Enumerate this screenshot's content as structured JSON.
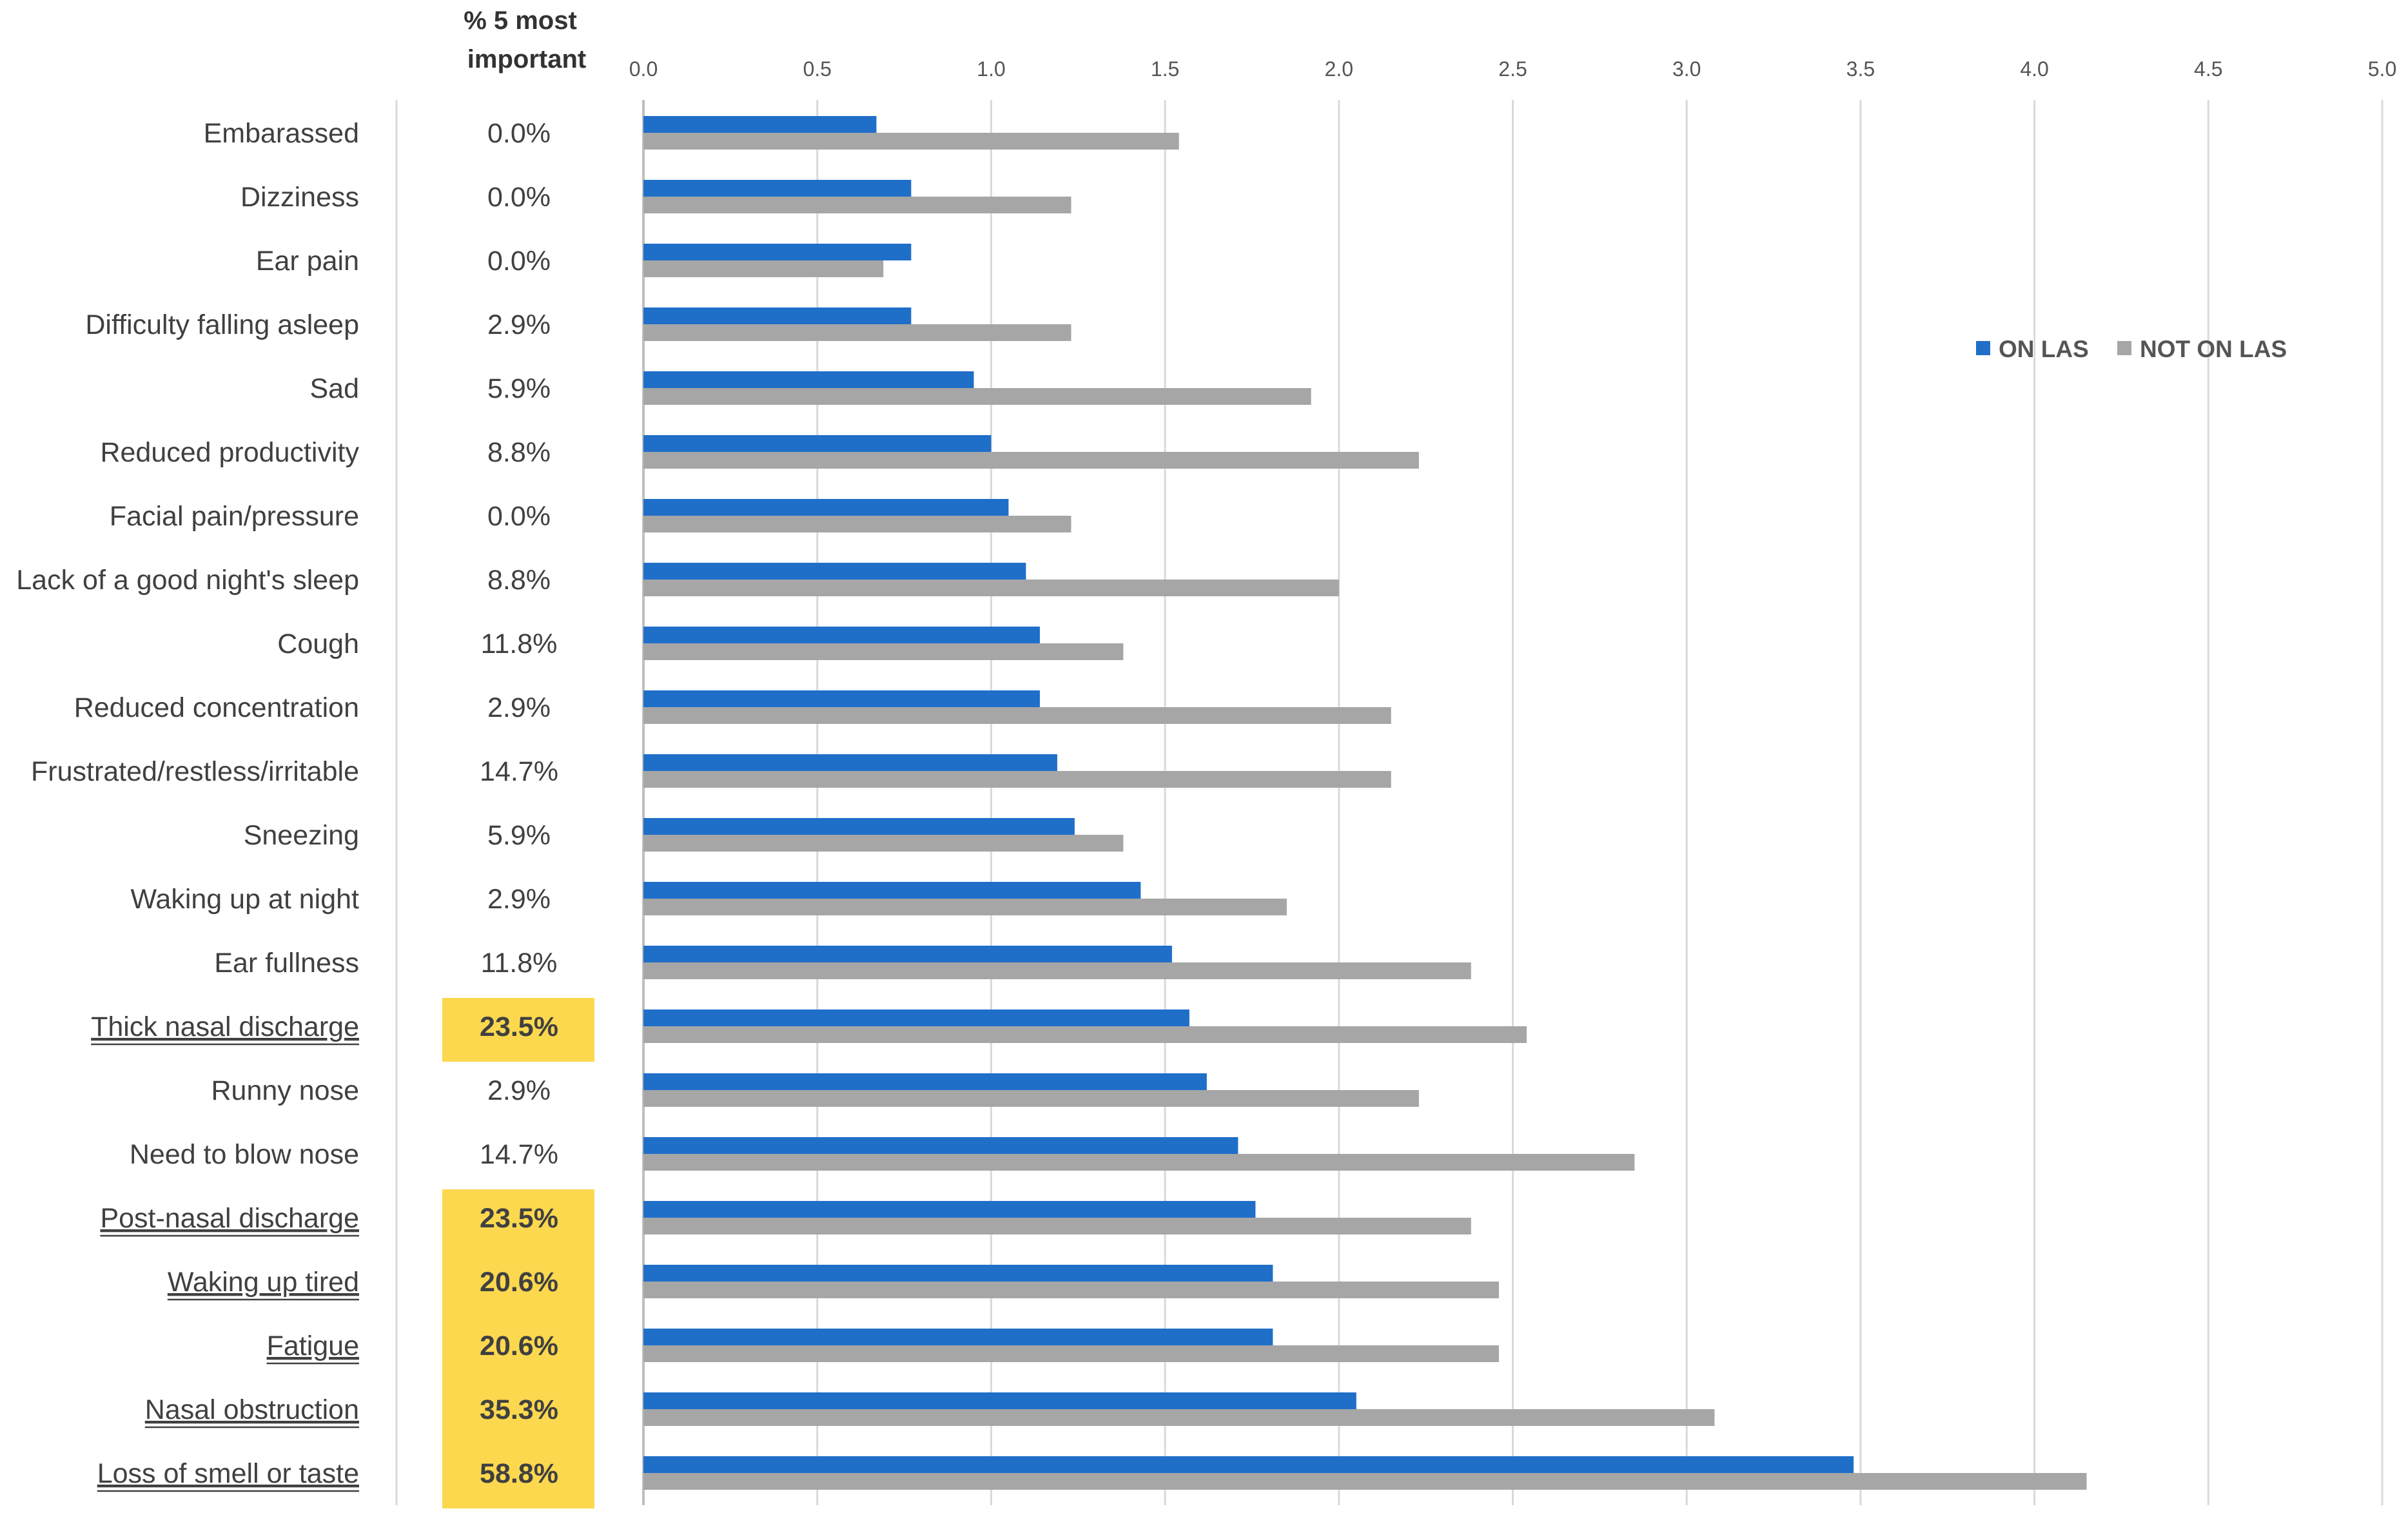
{
  "chart_data": {
    "type": "bar",
    "orientation": "horizontal",
    "title": "",
    "xlabel": "",
    "ylabel": "",
    "xlim": [
      0,
      5.0
    ],
    "x_ticks": [
      "0.0",
      "0.5",
      "1.0",
      "1.5",
      "2.0",
      "2.5",
      "3.0",
      "3.5",
      "4.0",
      "4.5",
      "5.0"
    ],
    "grid": "vertical",
    "legend": {
      "position": "right",
      "entries": [
        "ON LAS",
        "NOT ON LAS"
      ]
    },
    "pct_column_header": [
      "% 5 most",
      "important"
    ],
    "categories": [
      "Embarassed",
      "Dizziness",
      "Ear pain",
      "Difficulty falling asleep",
      "Sad",
      "Reduced productivity",
      "Facial pain/pressure",
      "Lack of a good night's sleep",
      "Cough",
      "Reduced concentration",
      "Frustrated/restless/irritable",
      "Sneezing",
      "Waking up at night",
      "Ear fullness",
      "Thick nasal discharge",
      "Runny nose",
      "Need to blow nose",
      "Post-nasal discharge",
      "Waking up tired",
      "Fatigue",
      "Nasal obstruction",
      "Loss of smell or taste"
    ],
    "pct_most_important": [
      "0.0%",
      "0.0%",
      "0.0%",
      "2.9%",
      "5.9%",
      "8.8%",
      "0.0%",
      "8.8%",
      "11.8%",
      "2.9%",
      "14.7%",
      "5.9%",
      "2.9%",
      "11.8%",
      "23.5%",
      "2.9%",
      "14.7%",
      "23.5%",
      "20.6%",
      "20.6%",
      "35.3%",
      "58.8%"
    ],
    "highlighted": [
      false,
      false,
      false,
      false,
      false,
      false,
      false,
      false,
      false,
      false,
      false,
      false,
      false,
      false,
      true,
      false,
      false,
      true,
      true,
      true,
      true,
      true
    ],
    "series": [
      {
        "name": "ON LAS",
        "color": "#1f6fc9",
        "values": [
          0.67,
          0.77,
          0.77,
          0.77,
          0.95,
          1.0,
          1.05,
          1.1,
          1.14,
          1.14,
          1.19,
          1.24,
          1.43,
          1.52,
          1.57,
          1.62,
          1.71,
          1.76,
          1.81,
          1.81,
          2.05,
          3.48
        ]
      },
      {
        "name": "NOT ON LAS",
        "color": "#a6a6a6",
        "values": [
          1.54,
          1.23,
          0.69,
          1.23,
          1.92,
          2.23,
          1.23,
          2.0,
          1.38,
          2.15,
          2.15,
          1.38,
          1.85,
          2.38,
          2.54,
          2.23,
          2.85,
          2.38,
          2.46,
          2.46,
          3.08,
          4.15
        ]
      }
    ]
  },
  "colors": {
    "highlight_fill": "#fcd84f",
    "grid_line": "#d9d9d9",
    "axis_line": "#bfbfbf"
  }
}
